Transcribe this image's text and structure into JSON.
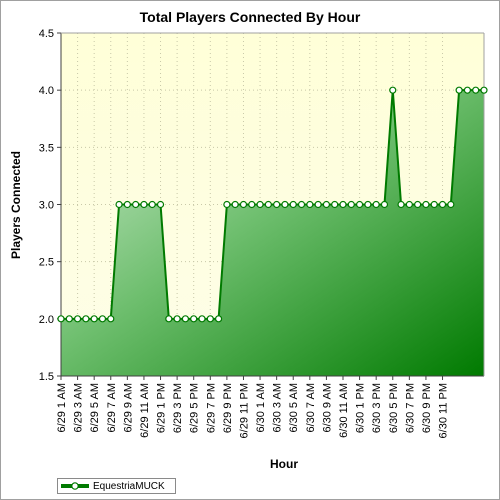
{
  "chart_data": {
    "type": "area",
    "title": "Total Players Connected By Hour",
    "xlabel": "Hour",
    "ylabel": "Players Connected",
    "ylim": [
      1.5,
      4.5
    ],
    "yticks": [
      "1.5",
      "2.0",
      "2.5",
      "3.0",
      "3.5",
      "4.0",
      "4.5"
    ],
    "xticklabels": [
      "6/29 1 AM",
      "6/29 3 AM",
      "6/29 5 AM",
      "6/29 7 AM",
      "6/29 9 AM",
      "6/29 11 AM",
      "6/29 1 PM",
      "6/29 3 PM",
      "6/29 5 PM",
      "6/29 7 PM",
      "6/29 9 PM",
      "6/29 11 PM",
      "6/30 1 AM",
      "6/30 3 AM",
      "6/30 5 AM",
      "6/30 7 AM",
      "6/30 9 AM",
      "6/30 11 AM",
      "6/30 1 PM",
      "6/30 3 PM",
      "6/30 5 PM",
      "6/30 7 PM",
      "6/30 9 PM",
      "6/30 11 PM"
    ],
    "grid": true,
    "legend_position": "bottom-left",
    "series": [
      {
        "name": "EquestriaMUCK",
        "color": "#007a00",
        "values": [
          2,
          2,
          2,
          2,
          2,
          2,
          2,
          3,
          3,
          3,
          3,
          3,
          3,
          2,
          2,
          2,
          2,
          2,
          2,
          2,
          3,
          3,
          3,
          3,
          3,
          3,
          3,
          3,
          3,
          3,
          3,
          3,
          3,
          3,
          3,
          3,
          3,
          3,
          3,
          3,
          4,
          3,
          3,
          3,
          3,
          3,
          3,
          3,
          4,
          4,
          4,
          4
        ]
      }
    ]
  }
}
